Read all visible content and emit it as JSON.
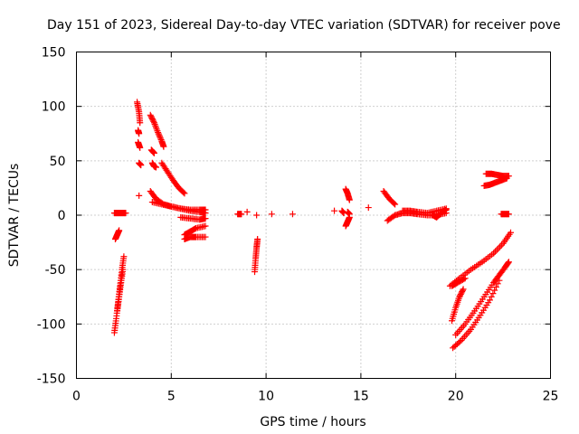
{
  "chart_data": {
    "type": "scatter",
    "title": "Day 151 of 2023, Sidereal Day-to-day VTEC variation (SDTVAR) for receiver pove",
    "xlabel": "GPS time / hours",
    "ylabel": "SDTVAR / TECUs",
    "xlim": [
      0,
      25
    ],
    "ylim": [
      -150,
      150
    ],
    "xticks": [
      0,
      5,
      10,
      15,
      20,
      25
    ],
    "yticks": [
      -150,
      -100,
      -50,
      0,
      50,
      100,
      150
    ],
    "grid": true,
    "marker": "+",
    "color": "#ff0000",
    "segments": [
      {
        "x": [
          2.0,
          2.1,
          2.2,
          2.3,
          2.4,
          2.5
        ],
        "y": [
          -108,
          -95,
          -80,
          -65,
          -50,
          -38
        ]
      },
      {
        "x": [
          2.15,
          2.25,
          2.35,
          2.45
        ],
        "y": [
          -88,
          -75,
          -62,
          -50
        ]
      },
      {
        "x": [
          2.05,
          2.15,
          2.25
        ],
        "y": [
          -22,
          -18,
          -14
        ]
      },
      {
        "x": [
          2.0,
          2.2,
          2.4,
          2.6
        ],
        "y": [
          2,
          2,
          2,
          2
        ]
      },
      {
        "x": [
          3.2,
          3.3,
          3.35
        ],
        "y": [
          104,
          95,
          85
        ]
      },
      {
        "x": [
          3.25,
          3.3
        ],
        "y": [
          78,
          75
        ]
      },
      {
        "x": [
          3.25,
          3.35
        ],
        "y": [
          67,
          62
        ]
      },
      {
        "x": [
          3.3,
          3.4
        ],
        "y": [
          48,
          46
        ]
      },
      {
        "x": [
          3.3
        ],
        "y": [
          18
        ]
      },
      {
        "x": [
          3.9,
          4.1,
          4.3,
          4.5,
          4.6
        ],
        "y": [
          92,
          85,
          76,
          68,
          63
        ]
      },
      {
        "x": [
          3.95,
          4.1
        ],
        "y": [
          60,
          57
        ]
      },
      {
        "x": [
          4.0,
          4.1,
          4.2
        ],
        "y": [
          48,
          45,
          44
        ]
      },
      {
        "x": [
          4.5,
          4.8,
          5.1,
          5.4,
          5.7
        ],
        "y": [
          48,
          40,
          32,
          25,
          20
        ]
      },
      {
        "x": [
          3.9,
          4.2,
          4.6,
          5.0,
          5.5,
          6.0,
          6.5,
          6.8
        ],
        "y": [
          22,
          15,
          10,
          8,
          6,
          5,
          5,
          5
        ]
      },
      {
        "x": [
          4.0,
          4.5,
          5.0,
          5.5,
          6.0,
          6.5,
          6.8
        ],
        "y": [
          12,
          10,
          8,
          6,
          4,
          3,
          2
        ]
      },
      {
        "x": [
          5.5,
          6.0,
          6.5,
          6.8
        ],
        "y": [
          -2,
          -3,
          -4,
          -3
        ]
      },
      {
        "x": [
          5.7,
          6.0,
          6.3,
          6.8
        ],
        "y": [
          -18,
          -15,
          -12,
          -10
        ]
      },
      {
        "x": [
          5.7,
          6.0,
          6.3,
          6.8
        ],
        "y": [
          -22,
          -20,
          -20,
          -20
        ]
      },
      {
        "x": [
          8.5,
          8.7
        ],
        "y": [
          1,
          1
        ]
      },
      {
        "x": [
          9.0
        ],
        "y": [
          3
        ]
      },
      {
        "x": [
          9.5
        ],
        "y": [
          0
        ]
      },
      {
        "x": [
          10.3
        ],
        "y": [
          1
        ]
      },
      {
        "x": [
          11.4
        ],
        "y": [
          1
        ]
      },
      {
        "x": [
          9.4,
          9.45,
          9.5,
          9.55
        ],
        "y": [
          -52,
          -40,
          -30,
          -22
        ]
      },
      {
        "x": [
          13.6
        ],
        "y": [
          4
        ]
      },
      {
        "x": [
          14.0,
          14.1
        ],
        "y": [
          4,
          2
        ]
      },
      {
        "x": [
          14.2,
          14.3,
          14.4
        ],
        "y": [
          24,
          20,
          14
        ]
      },
      {
        "x": [
          14.2,
          14.3,
          14.4
        ],
        "y": [
          -10,
          -6,
          -2
        ]
      },
      {
        "x": [
          14.3,
          14.4
        ],
        "y": [
          3,
          1
        ]
      },
      {
        "x": [
          15.4
        ],
        "y": [
          7
        ]
      },
      {
        "x": [
          16.2,
          16.5,
          16.8
        ],
        "y": [
          22,
          15,
          10
        ]
      },
      {
        "x": [
          16.4,
          16.8,
          17.2,
          17.6,
          18.0,
          18.5,
          19.0,
          19.5
        ],
        "y": [
          -5,
          0,
          2,
          2,
          1,
          0,
          0,
          2
        ]
      },
      {
        "x": [
          17.2,
          17.6,
          18.0,
          18.5,
          19.0,
          19.5
        ],
        "y": [
          4,
          4,
          3,
          2,
          4,
          6
        ]
      },
      {
        "x": [
          18.8,
          19.0,
          19.3,
          19.5
        ],
        "y": [
          0,
          -2,
          3,
          5
        ]
      },
      {
        "x": [
          19.7,
          20.2,
          20.8,
          21.4,
          22.0,
          22.5,
          22.9
        ],
        "y": [
          -65,
          -58,
          -50,
          -43,
          -35,
          -26,
          -16
        ]
      },
      {
        "x": [
          19.8,
          20.0,
          20.2,
          20.4
        ],
        "y": [
          -97,
          -85,
          -75,
          -68
        ]
      },
      {
        "x": [
          19.8,
          20.1,
          20.5
        ],
        "y": [
          -65,
          -62,
          -58
        ]
      },
      {
        "x": [
          19.85,
          20.3,
          20.8,
          21.3,
          21.8,
          22.3
        ],
        "y": [
          -122,
          -115,
          -105,
          -92,
          -78,
          -60
        ]
      },
      {
        "x": [
          20.0,
          20.5,
          21.0,
          21.5,
          22.0,
          22.3,
          22.6,
          22.8
        ],
        "y": [
          -110,
          -100,
          -88,
          -75,
          -62,
          -55,
          -48,
          -43
        ]
      },
      {
        "x": [
          21.5,
          21.8,
          22.1,
          22.4,
          22.7
        ],
        "y": [
          27,
          28,
          30,
          32,
          34
        ]
      },
      {
        "x": [
          21.6,
          21.9,
          22.2,
          22.5,
          22.8
        ],
        "y": [
          38,
          38,
          37,
          36,
          36
        ]
      },
      {
        "x": [
          22.4,
          22.6,
          22.8
        ],
        "y": [
          1,
          1,
          1
        ]
      }
    ]
  }
}
